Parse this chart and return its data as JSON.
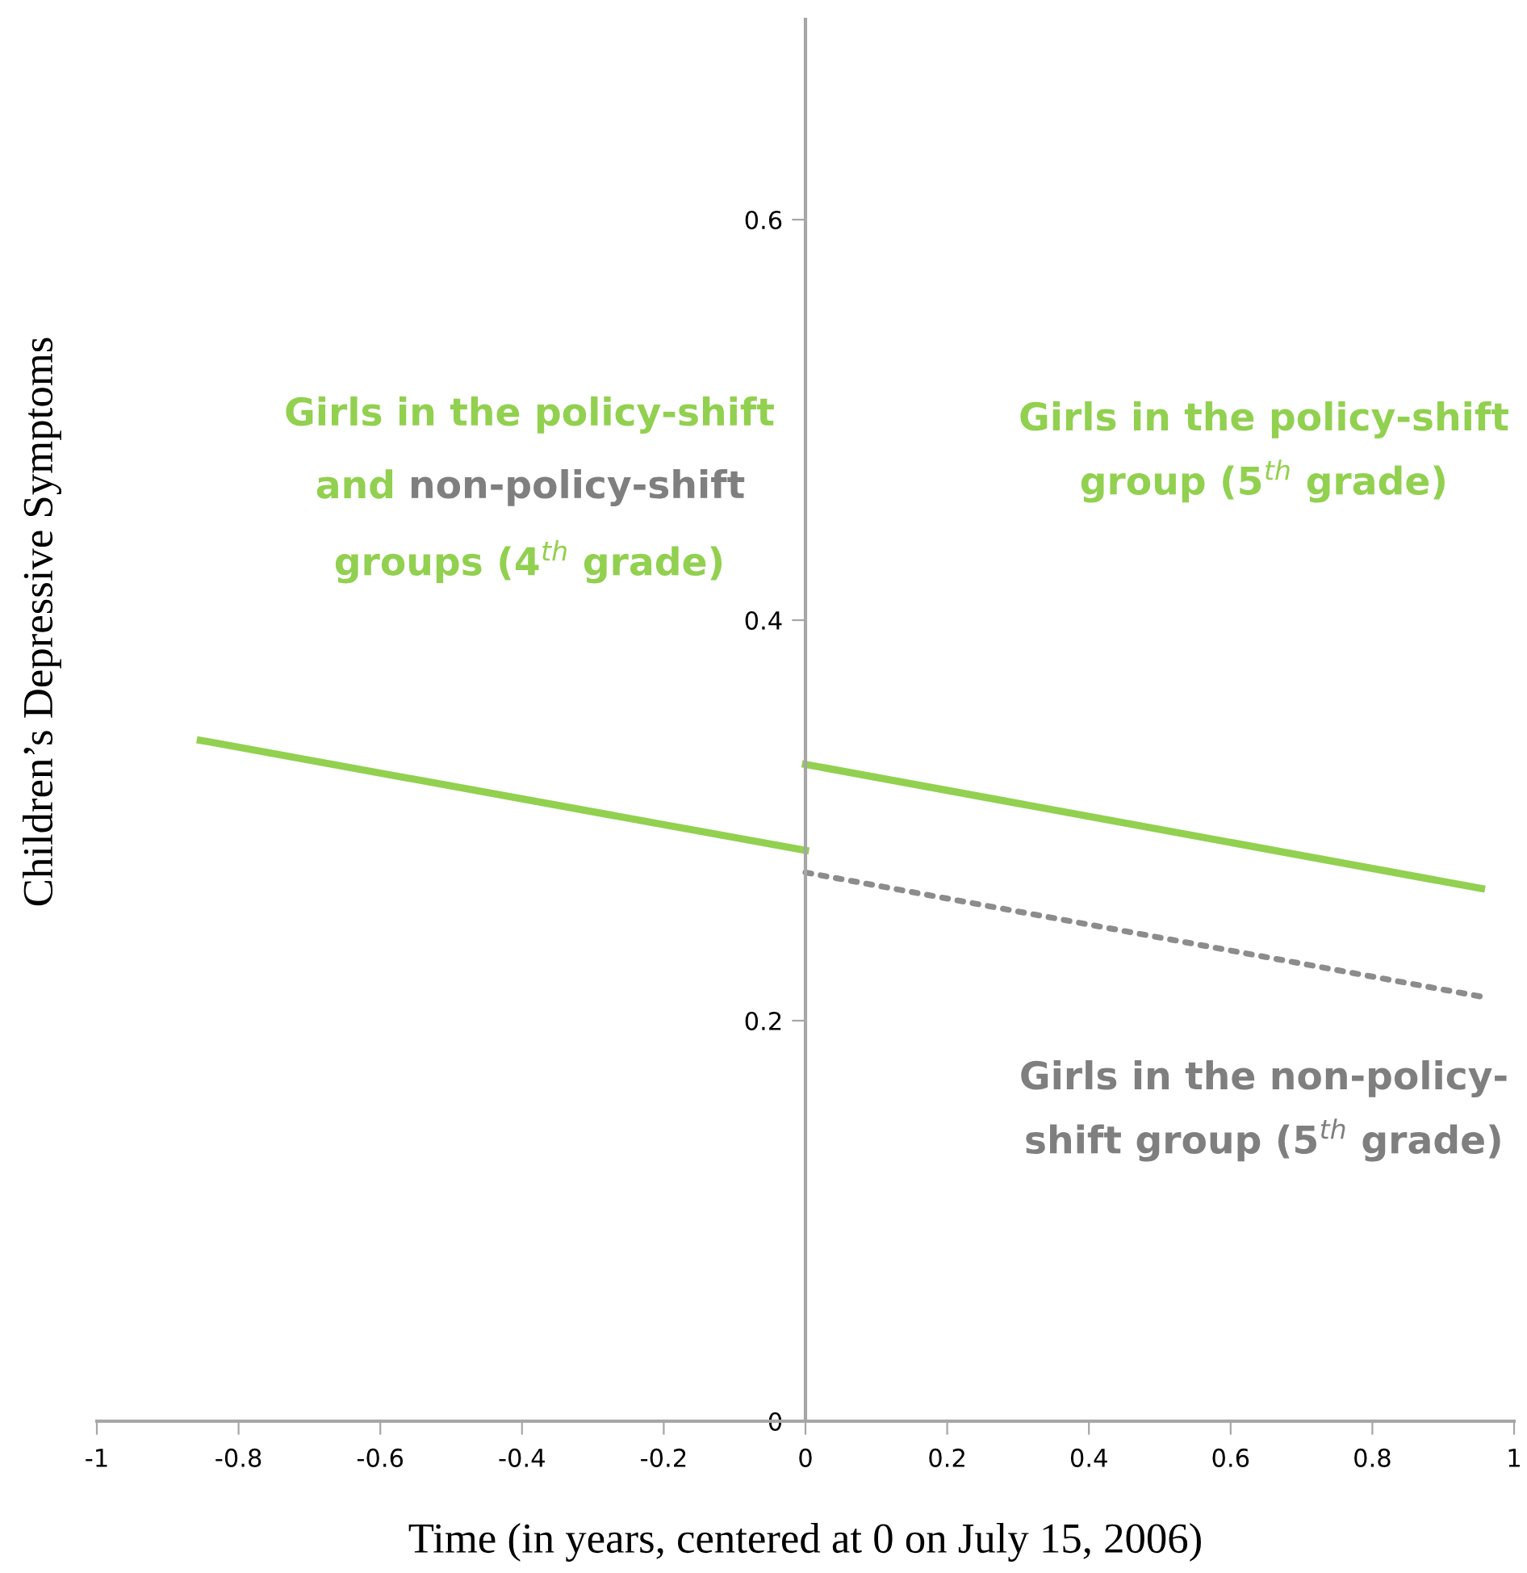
{
  "chart_data": {
    "type": "line",
    "xlabel": "Time (in years, centered at 0 on July 15, 2006)",
    "ylabel": "Children’s Depressive Symptoms",
    "xlim": [
      -1,
      1
    ],
    "xticks": [
      -1,
      -0.8,
      -0.6,
      -0.4,
      -0.2,
      0,
      0.2,
      0.4,
      0.6,
      0.8,
      1
    ],
    "ylim": [
      0,
      0.7
    ],
    "yticks": [
      0,
      0.2,
      0.4,
      0.6
    ],
    "grid": false,
    "legend": false,
    "marker": "none",
    "series": [
      {
        "color": "#92d050",
        "x": [
          -0.854,
          0
        ],
        "values": [
          0.34,
          0.285
        ],
        "line_style": "solid"
      },
      {
        "color": "#92d050",
        "x": [
          0,
          0.954
        ],
        "values": [
          0.328,
          0.266
        ],
        "line_style": "solid"
      },
      {
        "color": "#8c8c8c",
        "x": [
          0,
          0.954
        ],
        "values": [
          0.274,
          0.212
        ],
        "line_style": "dotted"
      }
    ],
    "annotations": [
      "Girls in the policy-shift",
      "and",
      "non-policy-shift",
      "groups (4$^{th}$ grade)",
      "Girls in the policy-shift\ngroup (5$^{th}$ grade)",
      "Girls in the non-policy-\nshift group (5$^{th}$ grade)"
    ]
  }
}
